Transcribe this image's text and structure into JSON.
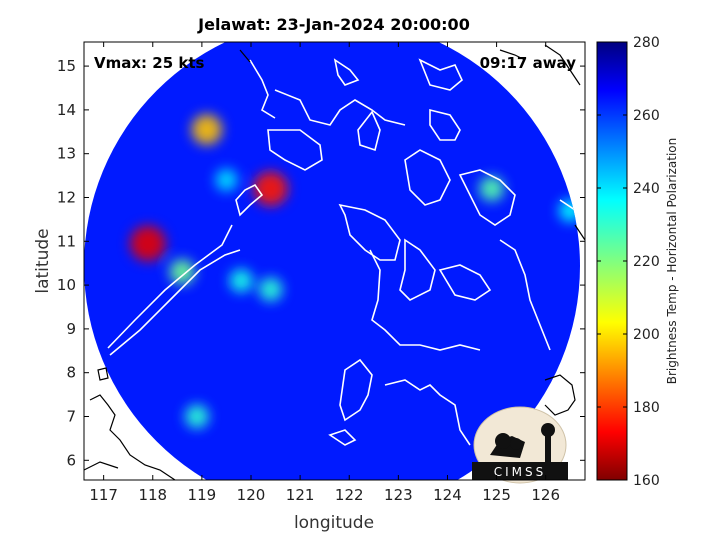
{
  "chart_data": {
    "type": "heatmap",
    "title": "Jelawat: 23-Jan-2024 20:00:00",
    "xlabel": "longitude",
    "ylabel": "latitude",
    "xlim": [
      116.6,
      126.8
    ],
    "ylim": [
      5.55,
      15.55
    ],
    "xticks": [
      "117",
      "118",
      "119",
      "120",
      "121",
      "122",
      "123",
      "124",
      "125",
      "126"
    ],
    "yticks": [
      "6",
      "7",
      "8",
      "9",
      "10",
      "11",
      "12",
      "13",
      "14",
      "15"
    ],
    "annotations": {
      "vmax": "Vmax: 25 kts",
      "time_away": "09:17 away"
    },
    "colorbar": {
      "label": "Brightness Temp - Horizontal Polarization",
      "range": [
        160,
        280
      ],
      "ticks": [
        "160",
        "180",
        "200",
        "220",
        "240",
        "260",
        "280"
      ],
      "colormap": "jet"
    },
    "swath": {
      "center_lon": 121.7,
      "center_lat": 10.4,
      "radius_deg": 4.9,
      "background_value": 262
    },
    "cold_spots": [
      {
        "lon": 120.4,
        "lat": 12.2,
        "value": 178
      },
      {
        "lon": 117.9,
        "lat": 10.95,
        "value": 172
      },
      {
        "lon": 119.1,
        "lat": 13.55,
        "value": 198
      },
      {
        "lon": 118.6,
        "lat": 10.3,
        "value": 222
      },
      {
        "lon": 119.8,
        "lat": 10.1,
        "value": 232
      },
      {
        "lon": 120.4,
        "lat": 9.9,
        "value": 230
      },
      {
        "lon": 124.9,
        "lat": 12.2,
        "value": 225
      },
      {
        "lon": 126.5,
        "lat": 11.7,
        "value": 235
      },
      {
        "lon": 118.9,
        "lat": 7.0,
        "value": 230
      },
      {
        "lon": 119.5,
        "lat": 12.4,
        "value": 238
      }
    ],
    "grid": false
  },
  "logo": {
    "text": "CIMSS"
  },
  "colors": {
    "axes": "#000000",
    "coastline": "#ffffff",
    "outside_coast": "#000000"
  }
}
